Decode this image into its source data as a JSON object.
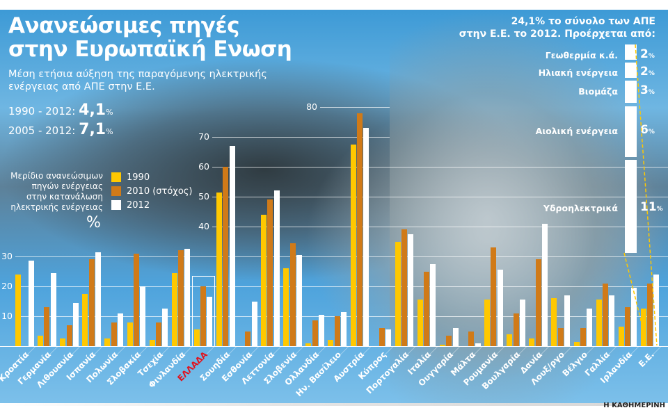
{
  "header": {
    "title_line1": "Ανανεώσιμες πηγές",
    "title_line2": "στην Ευρωπαϊκή Ενωση",
    "subtitle_line1": "Μέση ετήσια αύξηση της παραγόμενης ηλεκτρικής",
    "subtitle_line2": "ενέργειας από ΑΠΕ στην Ε.Ε.",
    "stat1_label": "1990 - 2012:",
    "stat1_value": "4,1",
    "stat1_unit": "%",
    "stat2_label": "2005 - 2012:",
    "stat2_value": "7,1",
    "stat2_unit": "%"
  },
  "legend": {
    "description_lines": [
      "Μερίδιο ανανεώσιμων",
      "πηγών ενέργειας",
      "στην κατανάλωση",
      "ηλεκτρικής ενέργειας"
    ],
    "unit": "%",
    "items": [
      {
        "label": "1990",
        "color": "#ffc800"
      },
      {
        "label": "2010 (στόχος)",
        "color": "#d07a18"
      },
      {
        "label": "2012",
        "color": "#ffffff"
      }
    ]
  },
  "breakdown": {
    "title_line1": "24,1% το σύνολο των ΑΠΕ",
    "title_line2": "στην Ε.Ε. το 2012. Προέρχεται από:",
    "items": [
      {
        "label": "Γεωθερμία κ.ά.",
        "value": "2",
        "unit": "%"
      },
      {
        "label": "Ηλιακή ενέργεια",
        "value": "2",
        "unit": "%"
      },
      {
        "label": "Βιομάζα",
        "value": "3",
        "unit": "%"
      },
      {
        "label": "Αιολική ενέργεια",
        "value": "6",
        "unit": "%"
      },
      {
        "label": "Υδροηλεκτρικά",
        "value": "11",
        "unit": "%"
      }
    ]
  },
  "footer": {
    "source": "Η ΚΑΘΗΜΕΡΙΝΗ"
  },
  "chart_data": {
    "type": "bar",
    "title": "Μερίδιο ανανεώσιμων πηγών ενέργειας στην κατανάλωση ηλεκτρικής ενέργειας (%)",
    "xlabel": "",
    "ylabel": "%",
    "ylim": [
      0,
      80
    ],
    "yticks": [
      10,
      20,
      30,
      40,
      50,
      60,
      70,
      80
    ],
    "grid": true,
    "legend_position": "left",
    "categories": [
      "Κροατία",
      "Γερμανία",
      "Λιθουανία",
      "Ισπανία",
      "Πολωνία",
      "Σλοβακία",
      "Τσεχία",
      "Φινλανδία",
      "ΕΛΛΑΔΑ",
      "Σουηδία",
      "Εσθονία",
      "Λεττονία",
      "Σλοβενία",
      "Ολλανδία",
      "Ην. Βασίλειο",
      "Αυστρία",
      "Κύπρος",
      "Πορτογαλία",
      "Ιταλία",
      "Ουγγαρία",
      "Μάλτα",
      "Ρουμανία",
      "Βουλγαρία",
      "Δανία",
      "Λουξ/ργο",
      "Βέλγιο",
      "Γαλλία",
      "Ιρλανδία",
      "Ε.Ε."
    ],
    "series": [
      {
        "name": "1990",
        "color": "#ffc800",
        "values": [
          24,
          3.5,
          2.5,
          17.5,
          2.5,
          8,
          2,
          24.5,
          5.5,
          51.5,
          0,
          44,
          26,
          1,
          2,
          67.5,
          0,
          35,
          15.5,
          0.5,
          0,
          15.5,
          4,
          2.5,
          16,
          1.5,
          15.5,
          6.5,
          12.5
        ]
      },
      {
        "name": "2010 (στόχος)",
        "color": "#d07a18",
        "values": [
          0,
          13,
          7,
          29,
          8,
          31,
          8,
          32,
          20,
          60,
          5,
          49,
          34.5,
          8.5,
          10,
          78,
          6,
          39,
          25,
          3.5,
          5,
          33,
          11,
          29,
          6,
          6,
          21,
          13,
          21
        ]
      },
      {
        "name": "2012",
        "color": "#ffffff",
        "values": [
          28.5,
          24.5,
          14.5,
          31.5,
          11,
          20,
          12.5,
          32.5,
          16.5,
          67,
          15,
          52,
          30.5,
          10.5,
          11.5,
          73,
          5.5,
          37.5,
          27.5,
          6,
          1,
          25.5,
          15.5,
          41,
          17,
          12.5,
          17,
          19.5,
          24
        ]
      }
    ],
    "highlight": "ΕΛΛΑΔΑ",
    "breakdown_2012_eu": {
      "total": 24.1,
      "categories": [
        "Γεωθερμία κ.ά.",
        "Ηλιακή ενέργεια",
        "Βιομάζα",
        "Αιολική ενέργεια",
        "Υδροηλεκτρικά"
      ],
      "values": [
        2,
        2,
        3,
        6,
        11
      ]
    }
  }
}
